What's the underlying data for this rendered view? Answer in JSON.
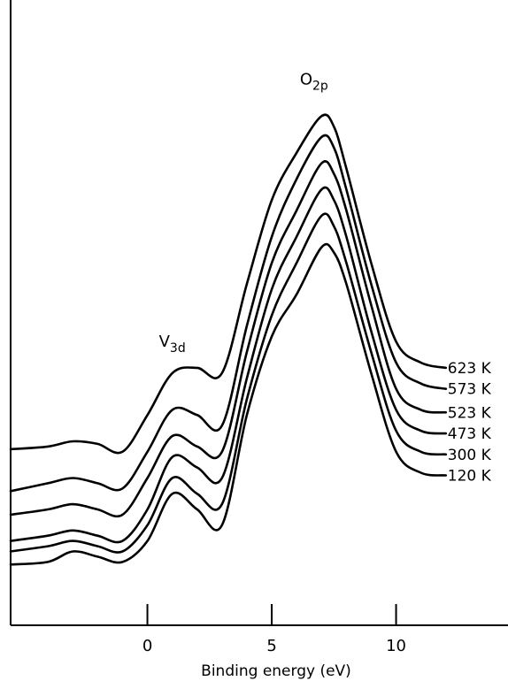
{
  "chart_data": {
    "type": "line",
    "xlabel": "Binding energy (eV)",
    "ylabel": "",
    "title": "",
    "xlim": [
      -5.5,
      14.5
    ],
    "ylim": [
      0,
      100
    ],
    "x_ticks": [
      0,
      5,
      10
    ],
    "x_tick_labels": [
      "0",
      "5",
      "10"
    ],
    "grid": false,
    "legend": "none",
    "annotations": [
      {
        "text": "V",
        "sub": "3d",
        "x": 1.0,
        "y": 46
      },
      {
        "text": "O",
        "sub": "2p",
        "x": 6.7,
        "y": 96
      }
    ],
    "series": [
      {
        "name": "623 K",
        "x": [
          -5.5,
          -4,
          -3,
          -2,
          -1,
          0,
          1,
          2,
          3,
          4,
          5,
          6,
          7,
          7.5,
          8,
          9,
          10,
          11,
          12
        ],
        "y": [
          26.5,
          27,
          28,
          27.5,
          26,
          33,
          41,
          42,
          41,
          58,
          74,
          83,
          90,
          88,
          80,
          62,
          47,
          43,
          42
        ]
      },
      {
        "name": "573 K",
        "x": [
          -5.5,
          -4,
          -3,
          -2,
          -1,
          0,
          1,
          2,
          3,
          4,
          5,
          6,
          7,
          7.5,
          8,
          9,
          10,
          11,
          12
        ],
        "y": [
          18.5,
          20,
          21,
          20,
          19,
          26,
          34,
          33,
          31,
          50,
          67,
          78,
          86,
          84,
          76,
          58,
          43,
          39,
          38
        ]
      },
      {
        "name": "523 K",
        "x": [
          -5.5,
          -4,
          -3,
          -2,
          -1,
          0,
          1,
          2,
          3,
          4,
          5,
          6,
          7,
          7.5,
          8,
          9,
          10,
          11,
          12
        ],
        "y": [
          14,
          15,
          16,
          15,
          14,
          21,
          29,
          27,
          26,
          45,
          62,
          72,
          81,
          79,
          72,
          54,
          38,
          34,
          33.5
        ]
      },
      {
        "name": "473 K",
        "x": [
          -5.5,
          -4,
          -3,
          -2,
          -1,
          0,
          1,
          2,
          3,
          4,
          5,
          6,
          7,
          7.5,
          8,
          9,
          10,
          11,
          12
        ],
        "y": [
          9,
          10,
          11,
          10,
          9,
          15,
          25,
          23,
          21,
          40,
          57,
          67,
          76,
          74,
          67,
          49,
          34,
          30,
          29.5
        ]
      },
      {
        "name": "300 K",
        "x": [
          -5.5,
          -4,
          -3,
          -2,
          -1,
          0,
          1,
          2,
          3,
          4,
          5,
          6,
          7,
          7.5,
          8,
          9,
          10,
          11,
          12
        ],
        "y": [
          7,
          8,
          9,
          8,
          7,
          12,
          21,
          18,
          16,
          36,
          52,
          62,
          71,
          69,
          62,
          45,
          30,
          26,
          25.5
        ]
      },
      {
        "name": "120 K",
        "x": [
          -5.5,
          -4,
          -3,
          -2,
          -1,
          0,
          1,
          2,
          3,
          4,
          5,
          6,
          7,
          7.5,
          8,
          9,
          10,
          11,
          12
        ],
        "y": [
          4.5,
          5,
          7,
          6,
          5,
          9,
          18,
          15,
          12,
          33,
          48,
          56,
          65,
          64,
          58,
          41,
          26,
          22,
          21.5
        ]
      }
    ]
  }
}
